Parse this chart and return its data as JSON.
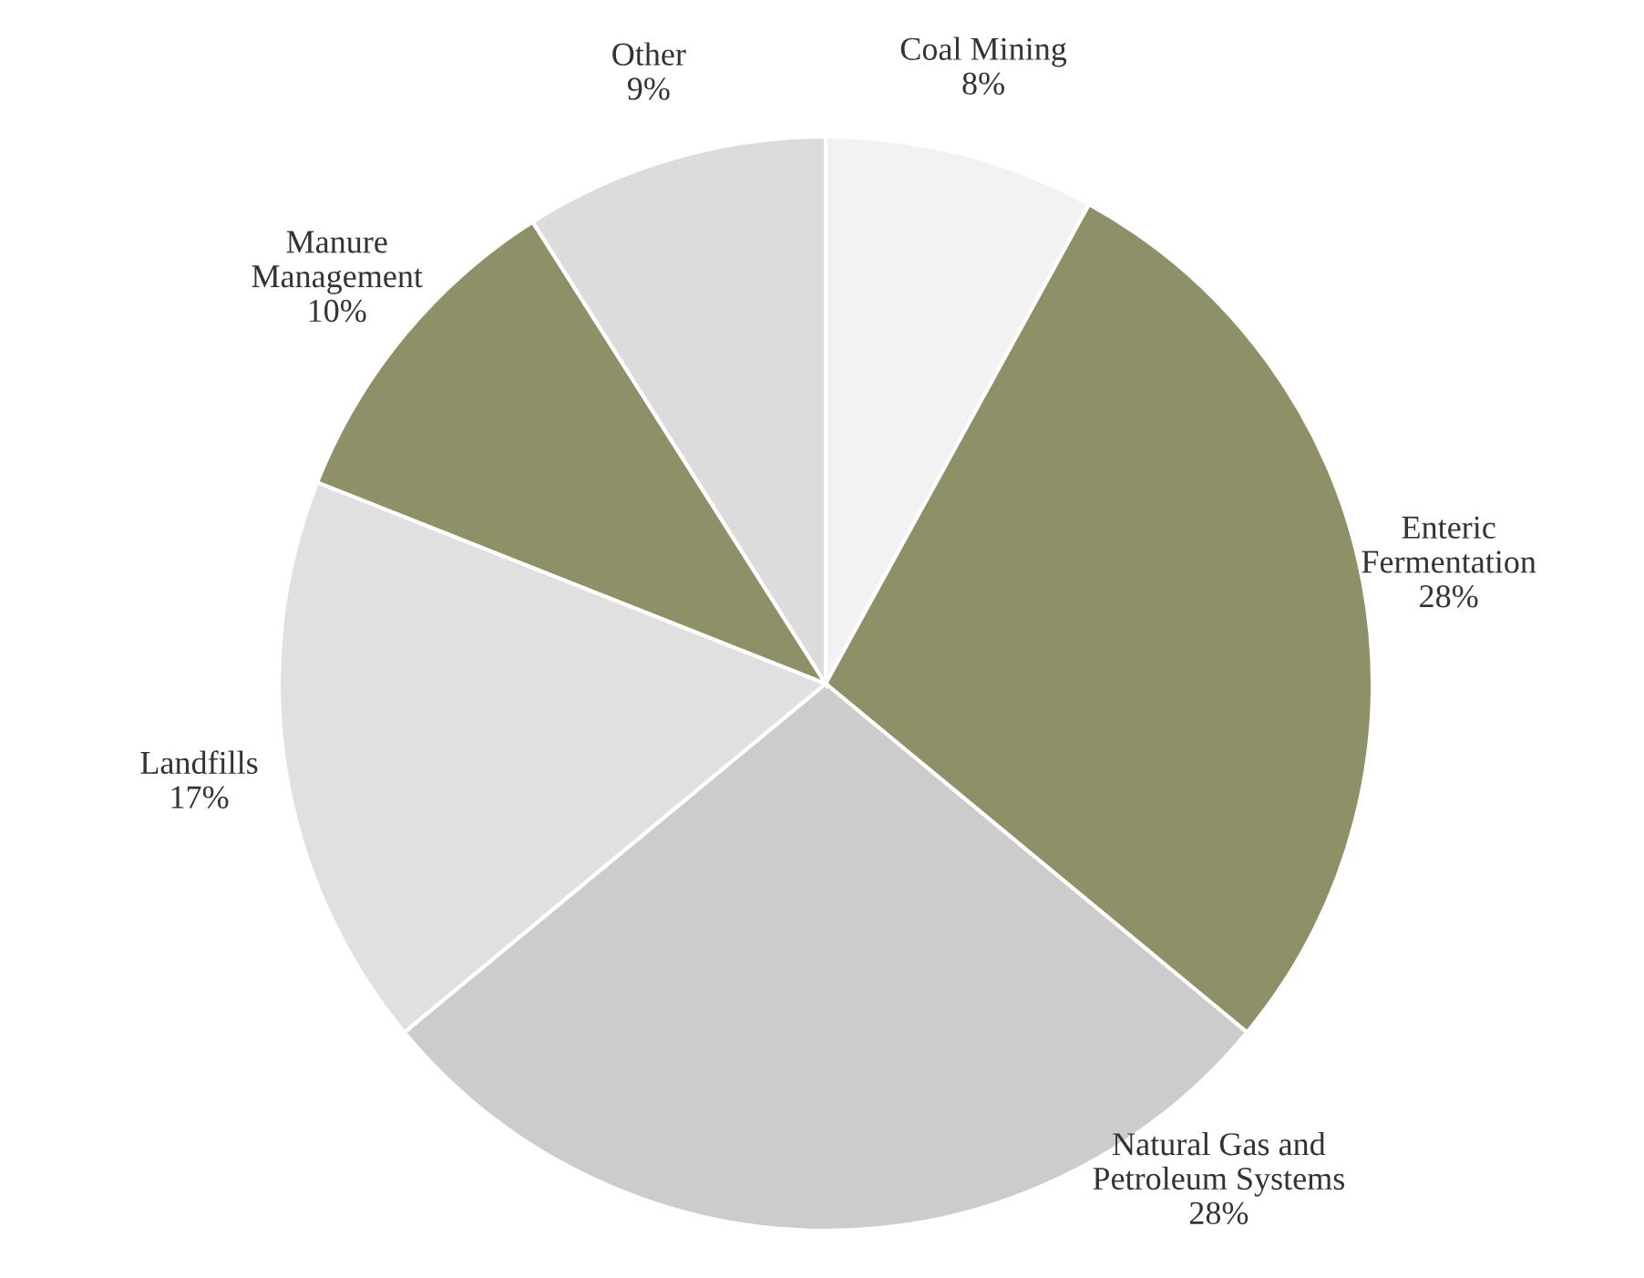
{
  "chart_data": {
    "type": "pie",
    "categories": [
      "Coal Mining\n8%",
      "Enteric\nFermentation\n28%",
      "Natural Gas and\nPetroleum Systems\n28%",
      "Landfills\n17%",
      "Manure\nManagement\n10%",
      "Other\n9%"
    ],
    "values": [
      8,
      28,
      28,
      17,
      10,
      9
    ],
    "colors": [
      "#f2f2f2",
      "#8f9068",
      "#cccccc",
      "#e0e0e0",
      "#8f9068",
      "#dcdcdc"
    ]
  }
}
